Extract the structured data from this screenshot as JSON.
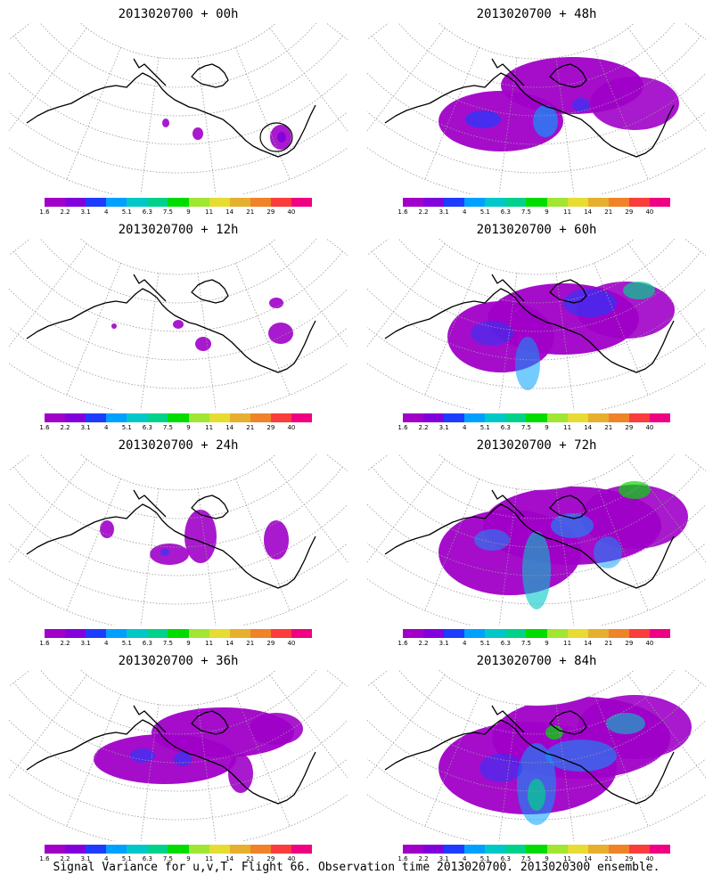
{
  "colors": {
    "scale": [
      "#a000c8",
      "#8200dc",
      "#1e3cff",
      "#00a0ff",
      "#00c8c8",
      "#00d28c",
      "#00dc00",
      "#a0e632",
      "#e6dc32",
      "#e6af2d",
      "#f08228",
      "#fa3c3c",
      "#f00082"
    ],
    "coast": "#000000",
    "grid": "#9a9a9a"
  },
  "colorbar_labels": [
    "1.6",
    "2.2",
    "3.1",
    "4",
    "5.1",
    "6.3",
    "7.5",
    "9",
    "11",
    "14",
    "21",
    "29",
    "40"
  ],
  "panels": [
    {
      "title": "2013020700 + 00h"
    },
    {
      "title": "2013020700 + 48h"
    },
    {
      "title": "2013020700 + 12h"
    },
    {
      "title": "2013020700 + 60h"
    },
    {
      "title": "2013020700 + 24h"
    },
    {
      "title": "2013020700 + 72h"
    },
    {
      "title": "2013020700 + 36h"
    },
    {
      "title": "2013020700 + 84h"
    }
  ],
  "caption": "Signal Variance for u,v,T. Flight 66. Observation time 2013020700. 2013020300 ensemble."
}
